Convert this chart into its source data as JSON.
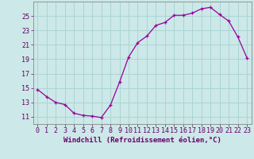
{
  "x": [
    0,
    1,
    2,
    3,
    4,
    5,
    6,
    7,
    8,
    9,
    10,
    11,
    12,
    13,
    14,
    15,
    16,
    17,
    18,
    19,
    20,
    21,
    22,
    23
  ],
  "y": [
    14.8,
    13.8,
    13.0,
    12.7,
    11.5,
    11.2,
    11.1,
    10.9,
    12.6,
    15.8,
    19.3,
    21.3,
    22.2,
    23.7,
    24.1,
    25.1,
    25.1,
    25.4,
    26.0,
    26.2,
    25.2,
    24.3,
    22.1,
    19.2
  ],
  "line_color": "#990099",
  "marker": "+",
  "bg_color": "#cce8e8",
  "grid_color": "#aad4d4",
  "xlabel": "Windchill (Refroidissement éolien,°C)",
  "xlim": [
    -0.5,
    23.5
  ],
  "ylim": [
    10.0,
    27.0
  ],
  "yticks": [
    11,
    13,
    15,
    17,
    19,
    21,
    23,
    25
  ],
  "xticks": [
    0,
    1,
    2,
    3,
    4,
    5,
    6,
    7,
    8,
    9,
    10,
    11,
    12,
    13,
    14,
    15,
    16,
    17,
    18,
    19,
    20,
    21,
    22,
    23
  ],
  "tick_color": "#660066",
  "label_fontsize": 6.5,
  "tick_fontsize": 6.0
}
